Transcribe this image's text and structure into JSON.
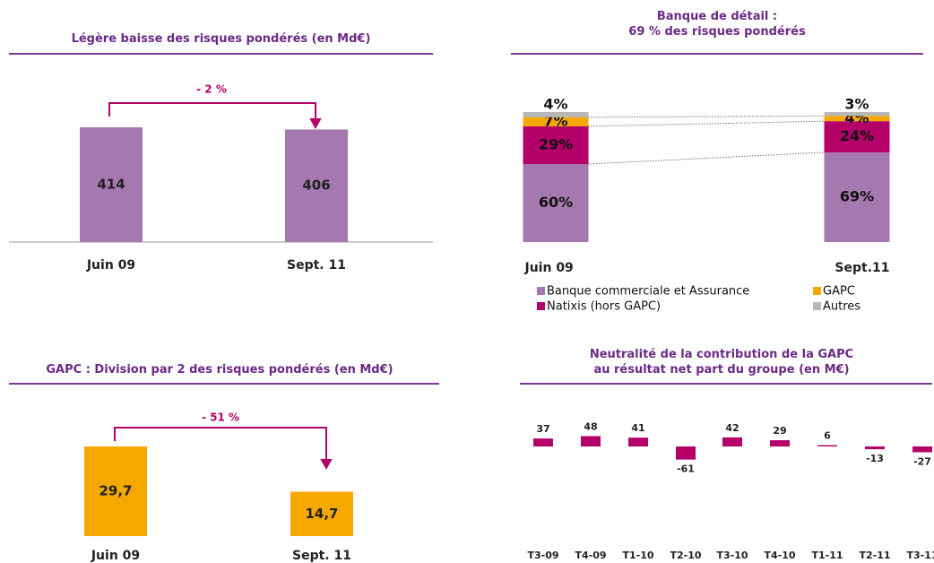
{
  "chart_data": [
    {
      "type": "bar",
      "title": "Légère baisse des risques pondérés (en Md€)",
      "annotation": "- 2 %",
      "categories": [
        "Juin 09",
        "Sept. 11"
      ],
      "values": [
        414,
        406
      ],
      "color": "#a678b0"
    },
    {
      "type": "stacked_bar",
      "title": "Banque de détail :\n69 % des risques pondérés",
      "categories": [
        "Juin 09",
        "Sept.11"
      ],
      "series": [
        {
          "name": "Banque commerciale et Assurance",
          "color": "#a678b0",
          "values": [
            60,
            69
          ],
          "value_labels": [
            "60%",
            "69%"
          ]
        },
        {
          "name": "Natixis (hors GAPC)",
          "color": "#b5006a",
          "values": [
            29,
            24
          ],
          "value_labels": [
            "29%",
            "24%"
          ]
        },
        {
          "name": "GAPC",
          "color": "#f5a800",
          "values": [
            7,
            4
          ],
          "value_labels": [
            "7%",
            "4%"
          ]
        },
        {
          "name": "Autres",
          "color": "#b7b7b7",
          "values": [
            4,
            3
          ],
          "value_labels": [
            "4%",
            "3%"
          ]
        }
      ]
    },
    {
      "type": "bar",
      "title": "GAPC : Division par 2 des risques pondérés (en Md€)",
      "annotation": "- 51 %",
      "categories": [
        "Juin 09",
        "Sept. 11"
      ],
      "values": [
        29.7,
        14.7
      ],
      "value_labels": [
        "29,7",
        "14,7"
      ],
      "color": "#f5a800"
    },
    {
      "type": "bar",
      "title": "Neutralité de la contribution de la GAPC\nau résultat net part du groupe (en M€)",
      "categories": [
        "T3-09",
        "T4-09",
        "T1-10",
        "T2-10",
        "T3-10",
        "T4-10",
        "T1-11",
        "T2-11",
        "T3-11"
      ],
      "values": [
        37,
        48,
        41,
        -61,
        42,
        29,
        6,
        -13,
        -27
      ],
      "color": "#b5006a"
    }
  ]
}
